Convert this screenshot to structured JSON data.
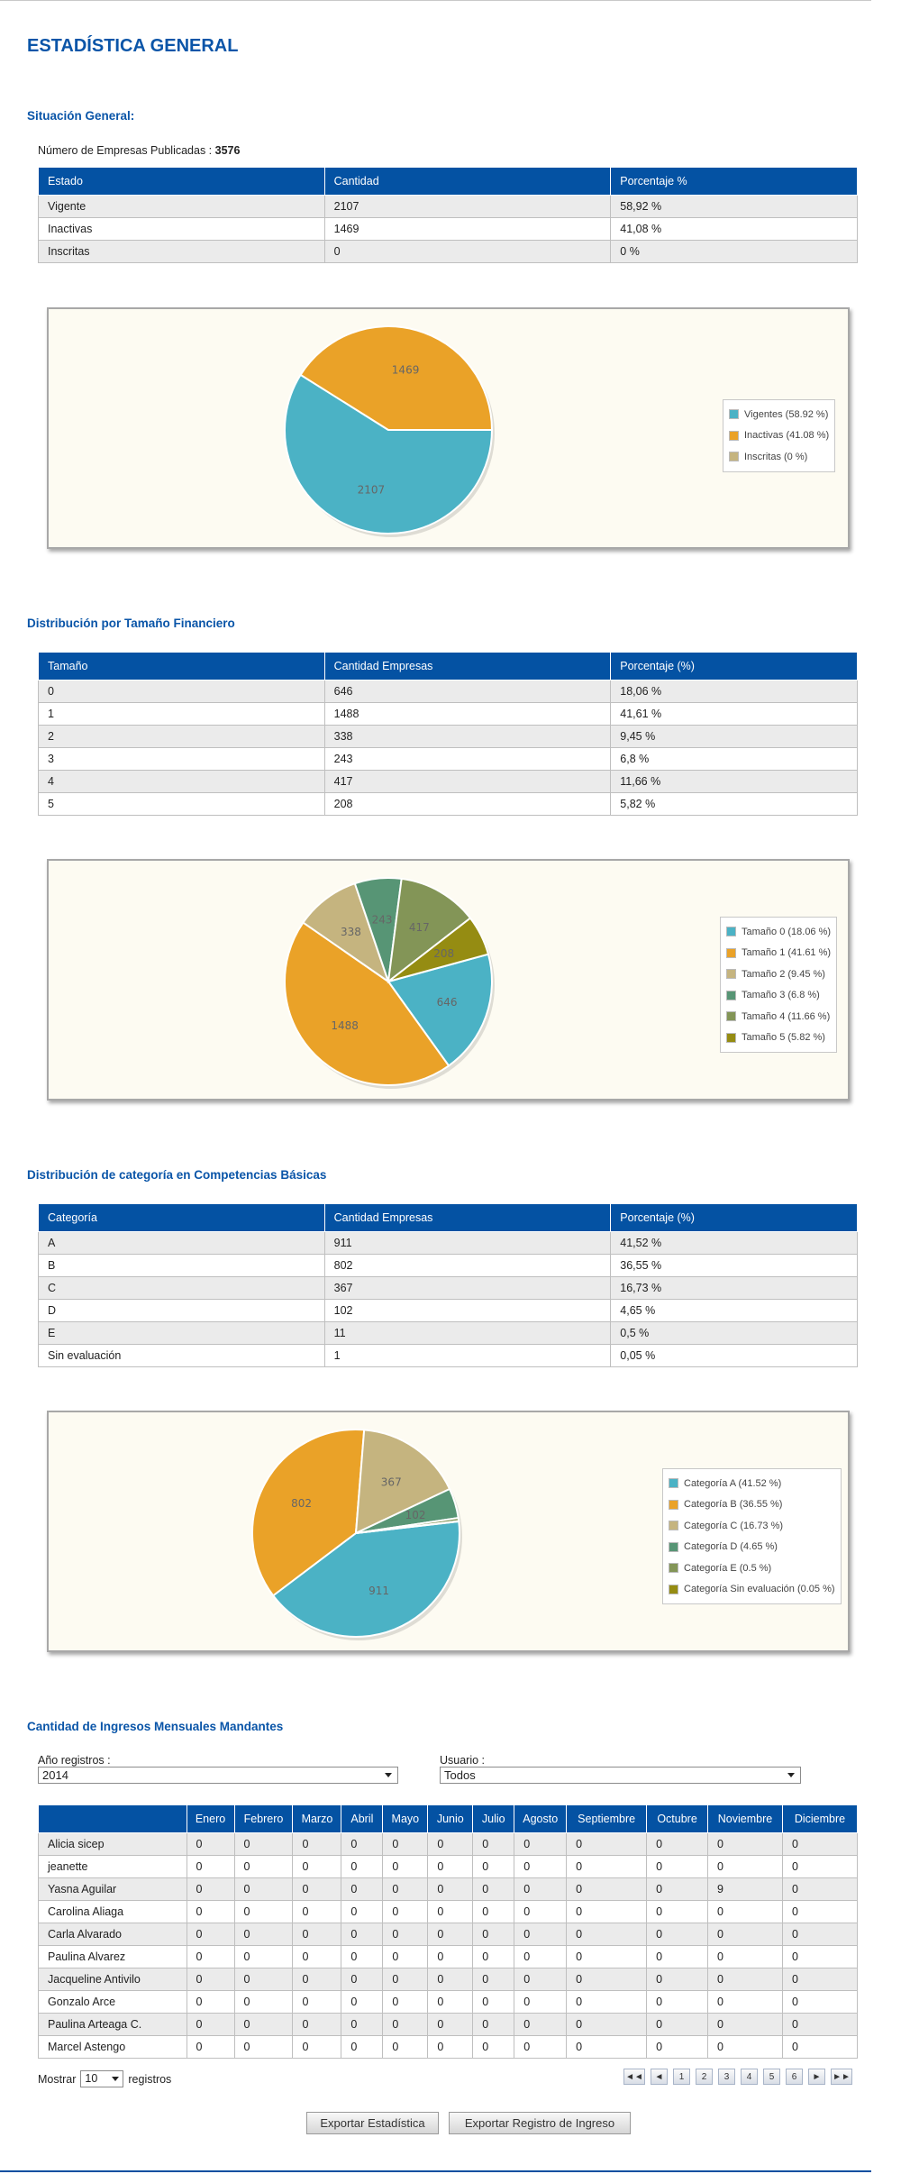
{
  "page_title": "ESTADÍSTICA GENERAL",
  "sit_general": {
    "title": "Situación General:",
    "pub_label": "Número de Empresas Publicadas :",
    "pub_value": "3576",
    "headers": [
      "Estado",
      "Cantidad",
      "Porcentaje %"
    ],
    "rows": [
      [
        "Vigente",
        "2107",
        "58,92 %"
      ],
      [
        "Inactivas",
        "1469",
        "41,08 %"
      ],
      [
        "Inscritas",
        "0",
        "0 %"
      ]
    ],
    "chart": {
      "type": "pie",
      "values": [
        2107,
        1469,
        0
      ],
      "colors": [
        "#4bb2c5",
        "#eaa228",
        "#c5b47f"
      ],
      "slice_labels": [
        "2107",
        "1469",
        ""
      ],
      "legend": [
        "Vigentes (58.92 %)",
        "Inactivas (41.08 %)",
        "Inscritas (0 %)"
      ]
    }
  },
  "tamano": {
    "title": "Distribución por Tamaño Financiero",
    "headers": [
      "Tamaño",
      "Cantidad Empresas",
      "Porcentaje (%)"
    ],
    "rows": [
      [
        "0",
        "646",
        "18,06 %"
      ],
      [
        "1",
        "1488",
        "41,61 %"
      ],
      [
        "2",
        "338",
        "9,45 %"
      ],
      [
        "3",
        "243",
        "6,8 %"
      ],
      [
        "4",
        "417",
        "11,66 %"
      ],
      [
        "5",
        "208",
        "5,82 %"
      ]
    ],
    "chart": {
      "type": "pie",
      "values": [
        646,
        1488,
        338,
        243,
        417,
        208
      ],
      "colors": [
        "#4bb2c5",
        "#eaa228",
        "#c5b47f",
        "#579575",
        "#839557",
        "#958c12"
      ],
      "slice_labels": [
        "646",
        "1488",
        "338",
        "243",
        "417",
        "208"
      ],
      "legend": [
        "Tamaño 0 (18.06 %)",
        "Tamaño 1 (41.61 %)",
        "Tamaño 2 (9.45 %)",
        "Tamaño 3 (6.8 %)",
        "Tamaño 4 (11.66 %)",
        "Tamaño 5 (5.82 %)"
      ]
    }
  },
  "competencias": {
    "title": "Distribución de categoría en Competencias Básicas",
    "headers": [
      "Categoría",
      "Cantidad Empresas",
      "Porcentaje (%)"
    ],
    "rows": [
      [
        "A",
        "911",
        "41,52 %"
      ],
      [
        "B",
        "802",
        "36,55 %"
      ],
      [
        "C",
        "367",
        "16,73 %"
      ],
      [
        "D",
        "102",
        "4,65 %"
      ],
      [
        "E",
        "11",
        "0,5 %"
      ],
      [
        "Sin evaluación",
        "1",
        "0,05 %"
      ]
    ],
    "chart": {
      "type": "pie",
      "values": [
        911,
        802,
        367,
        102,
        11,
        1
      ],
      "colors": [
        "#4bb2c5",
        "#eaa228",
        "#c5b47f",
        "#579575",
        "#839557",
        "#958c12"
      ],
      "slice_labels": [
        "911",
        "802",
        "367",
        "102",
        "",
        ""
      ],
      "legend": [
        "Categoría A (41.52 %)",
        "Categoría B (36.55 %)",
        "Categoría C (16.73 %)",
        "Categoría D (4.65 %)",
        "Categoría E (0.5 %)",
        "Categoría Sin evaluación (0.05 %)"
      ]
    }
  },
  "ingresos": {
    "title": "Cantidad de Ingresos Mensuales Mandantes",
    "year_label": "Año registros :",
    "year_value": "2014",
    "user_label": "Usuario :",
    "user_value": "Todos",
    "months": [
      "Enero",
      "Febrero",
      "Marzo",
      "Abril",
      "Mayo",
      "Junio",
      "Julio",
      "Agosto",
      "Septiembre",
      "Octubre",
      "Noviembre",
      "Diciembre"
    ],
    "rows": [
      {
        "name": "Alicia sicep",
        "values": [
          "0",
          "0",
          "0",
          "0",
          "0",
          "0",
          "0",
          "0",
          "0",
          "0",
          "0",
          "0"
        ]
      },
      {
        "name": "jeanette",
        "values": [
          "0",
          "0",
          "0",
          "0",
          "0",
          "0",
          "0",
          "0",
          "0",
          "0",
          "0",
          "0"
        ]
      },
      {
        "name": "Yasna Aguilar",
        "values": [
          "0",
          "0",
          "0",
          "0",
          "0",
          "0",
          "0",
          "0",
          "0",
          "0",
          "9",
          "0"
        ]
      },
      {
        "name": "Carolina Aliaga",
        "values": [
          "0",
          "0",
          "0",
          "0",
          "0",
          "0",
          "0",
          "0",
          "0",
          "0",
          "0",
          "0"
        ]
      },
      {
        "name": "Carla Alvarado",
        "values": [
          "0",
          "0",
          "0",
          "0",
          "0",
          "0",
          "0",
          "0",
          "0",
          "0",
          "0",
          "0"
        ]
      },
      {
        "name": "Paulina Alvarez",
        "values": [
          "0",
          "0",
          "0",
          "0",
          "0",
          "0",
          "0",
          "0",
          "0",
          "0",
          "0",
          "0"
        ]
      },
      {
        "name": "Jacqueline Antivilo",
        "values": [
          "0",
          "0",
          "0",
          "0",
          "0",
          "0",
          "0",
          "0",
          "0",
          "0",
          "0",
          "0"
        ]
      },
      {
        "name": "Gonzalo Arce",
        "values": [
          "0",
          "0",
          "0",
          "0",
          "0",
          "0",
          "0",
          "0",
          "0",
          "0",
          "0",
          "0"
        ]
      },
      {
        "name": "Paulina Arteaga C.",
        "values": [
          "0",
          "0",
          "0",
          "0",
          "0",
          "0",
          "0",
          "0",
          "0",
          "0",
          "0",
          "0"
        ]
      },
      {
        "name": "Marcel Astengo",
        "values": [
          "0",
          "0",
          "0",
          "0",
          "0",
          "0",
          "0",
          "0",
          "0",
          "0",
          "0",
          "0"
        ]
      }
    ],
    "show_label": "Mostrar",
    "show_value": "10",
    "show_suffix": "registros",
    "pager": [
      "◄◄",
      "◄",
      "1",
      "2",
      "3",
      "4",
      "5",
      "6",
      "►",
      "►►"
    ]
  },
  "buttons": {
    "export_stats": "Exportar Estadística",
    "export_log": "Exportar Registro de Ingreso"
  }
}
